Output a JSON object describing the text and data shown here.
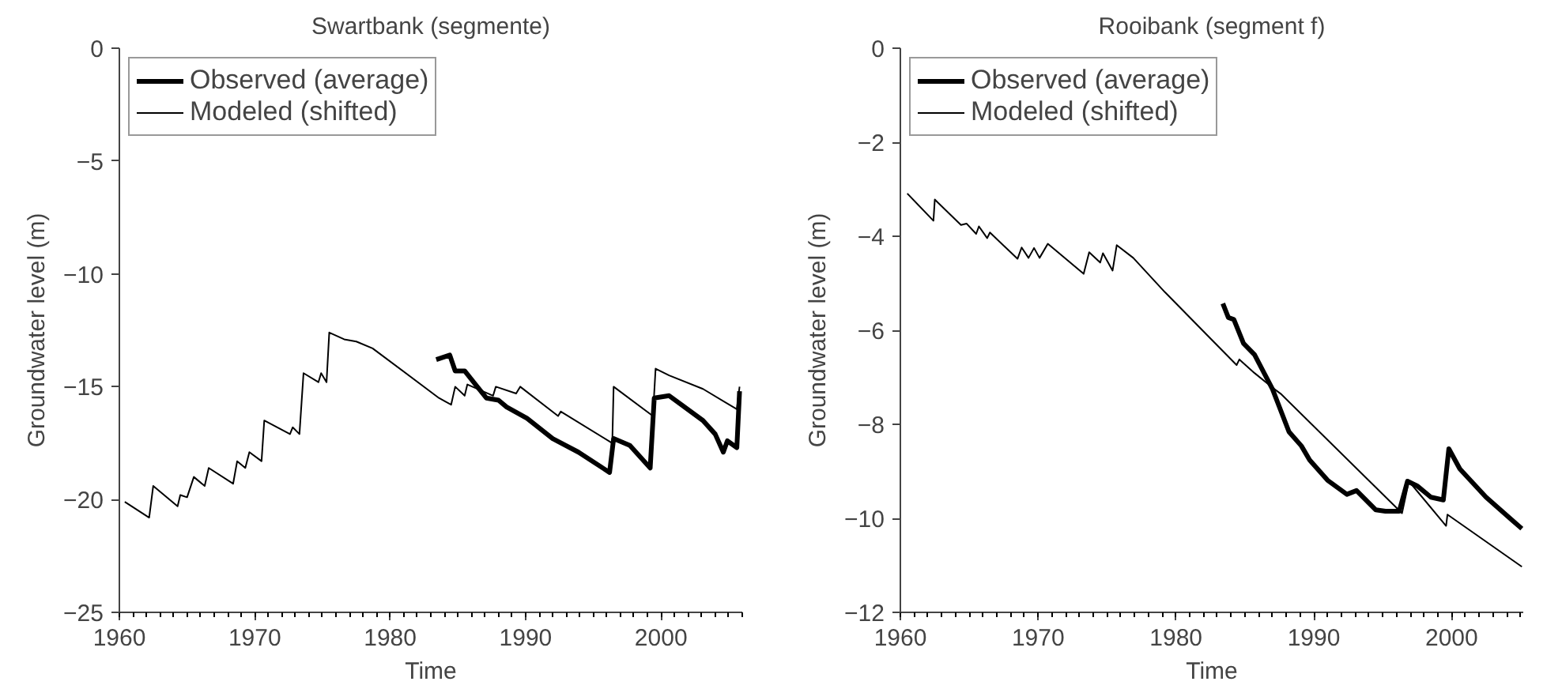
{
  "chart_data": [
    {
      "type": "line",
      "title": "Swartbank (segmente)",
      "xlabel": "Time",
      "ylabel": "Groundwater level (m)",
      "xlim": [
        1960,
        2006
      ],
      "xticks": [
        1960,
        1970,
        1980,
        1990,
        2000
      ],
      "ylim": [
        -25,
        0
      ],
      "yticks": [
        -25,
        -20,
        -15,
        -10,
        -5,
        0
      ],
      "legend": "top left",
      "grid": false,
      "series": [
        {
          "name": "Observed (average)",
          "color": "#000000",
          "x": [
            1983.4,
            1984.4,
            1984.8,
            1985.5,
            1986.3,
            1987.1,
            1988.0,
            1988.6,
            1990.1,
            1992.0,
            1993.9,
            1996.2,
            1996.5,
            1997.7,
            1999.2,
            1999.5,
            2000.6,
            2003.1,
            2004.0,
            2004.6,
            2004.9,
            2005.6,
            2005.8
          ],
          "values": [
            -13.8,
            -13.6,
            -14.3,
            -14.3,
            -14.9,
            -15.5,
            -15.6,
            -15.9,
            -16.4,
            -17.3,
            -17.9,
            -18.8,
            -17.3,
            -17.6,
            -18.6,
            -15.5,
            -15.4,
            -16.5,
            -17.1,
            -17.9,
            -17.4,
            -17.7,
            -15.2
          ]
        },
        {
          "name": "Modeled (shifted)",
          "color": "#000000",
          "x": [
            1960.4,
            1962.2,
            1962.5,
            1964.3,
            1964.5,
            1965.0,
            1965.5,
            1966.3,
            1966.6,
            1968.4,
            1968.7,
            1969.3,
            1969.6,
            1970.5,
            1970.7,
            1972.6,
            1972.8,
            1973.3,
            1973.6,
            1974.7,
            1974.9,
            1975.3,
            1975.5,
            1976.6,
            1977.5,
            1978.7,
            1983.6,
            1984.5,
            1984.8,
            1985.5,
            1985.7,
            1987.6,
            1987.8,
            1989.3,
            1989.6,
            1992.4,
            1992.6,
            1996.4,
            1996.5,
            1999.4,
            1999.6,
            2000.6,
            2003.1,
            2005.6,
            2005.8
          ],
          "values": [
            -20.1,
            -20.8,
            -19.4,
            -20.3,
            -19.8,
            -19.9,
            -19.0,
            -19.4,
            -18.6,
            -19.3,
            -18.3,
            -18.6,
            -17.9,
            -18.3,
            -16.5,
            -17.1,
            -16.8,
            -17.1,
            -14.4,
            -14.8,
            -14.4,
            -14.8,
            -12.6,
            -12.9,
            -13.0,
            -13.3,
            -15.5,
            -15.8,
            -15.0,
            -15.4,
            -14.9,
            -15.4,
            -15.0,
            -15.3,
            -15.0,
            -16.3,
            -16.1,
            -17.5,
            -15.0,
            -16.3,
            -14.2,
            -14.5,
            -15.1,
            -16.0,
            -15.0
          ]
        }
      ]
    },
    {
      "type": "line",
      "title": "Rooibank (segment f)",
      "xlabel": "Time",
      "ylabel": "Groundwater level (m)",
      "xlim": [
        1960,
        2005.2
      ],
      "xticks": [
        1960,
        1970,
        1980,
        1990,
        2000
      ],
      "ylim": [
        -12,
        0
      ],
      "yticks": [
        -12,
        -10,
        -8,
        -6,
        -4,
        -2,
        0
      ],
      "legend": "top left",
      "grid": false,
      "series": [
        {
          "name": "Observed (average)",
          "color": "#000000",
          "x": [
            1983.4,
            1983.8,
            1984.2,
            1984.9,
            1985.7,
            1987.0,
            1988.2,
            1989.1,
            1989.7,
            1991.0,
            1992.4,
            1993.1,
            1994.5,
            1995.2,
            1996.2,
            1996.8,
            1997.5,
            1998.5,
            1999.4,
            1999.8,
            2000.6,
            2002.5,
            2004.4,
            2005.1
          ],
          "values": [
            -5.43,
            -5.73,
            -5.77,
            -6.28,
            -6.52,
            -7.25,
            -8.16,
            -8.46,
            -8.76,
            -9.19,
            -9.49,
            -9.41,
            -9.82,
            -9.85,
            -9.85,
            -9.21,
            -9.31,
            -9.55,
            -9.61,
            -8.52,
            -8.95,
            -9.55,
            -10.04,
            -10.22
          ]
        },
        {
          "name": "Modeled (shifted)",
          "color": "#000000",
          "x": [
            1960.5,
            1962.4,
            1962.5,
            1964.4,
            1964.8,
            1965.5,
            1965.7,
            1966.3,
            1966.5,
            1968.5,
            1968.8,
            1969.3,
            1969.7,
            1970.1,
            1970.7,
            1973.3,
            1973.7,
            1974.5,
            1974.7,
            1975.4,
            1975.7,
            1976.9,
            1979.2,
            1984.4,
            1984.6,
            1985.7,
            1987.0,
            1987.6,
            1996.4,
            1996.9,
            1999.6,
            1999.7,
            2005.1
          ],
          "values": [
            -3.09,
            -3.67,
            -3.22,
            -3.76,
            -3.73,
            -3.95,
            -3.79,
            -4.04,
            -3.92,
            -4.48,
            -4.24,
            -4.46,
            -4.25,
            -4.46,
            -4.16,
            -4.8,
            -4.34,
            -4.56,
            -4.36,
            -4.73,
            -4.19,
            -4.46,
            -5.19,
            -6.74,
            -6.62,
            -6.91,
            -7.22,
            -7.35,
            -9.89,
            -9.21,
            -10.16,
            -9.92,
            -11.03
          ]
        }
      ]
    }
  ]
}
